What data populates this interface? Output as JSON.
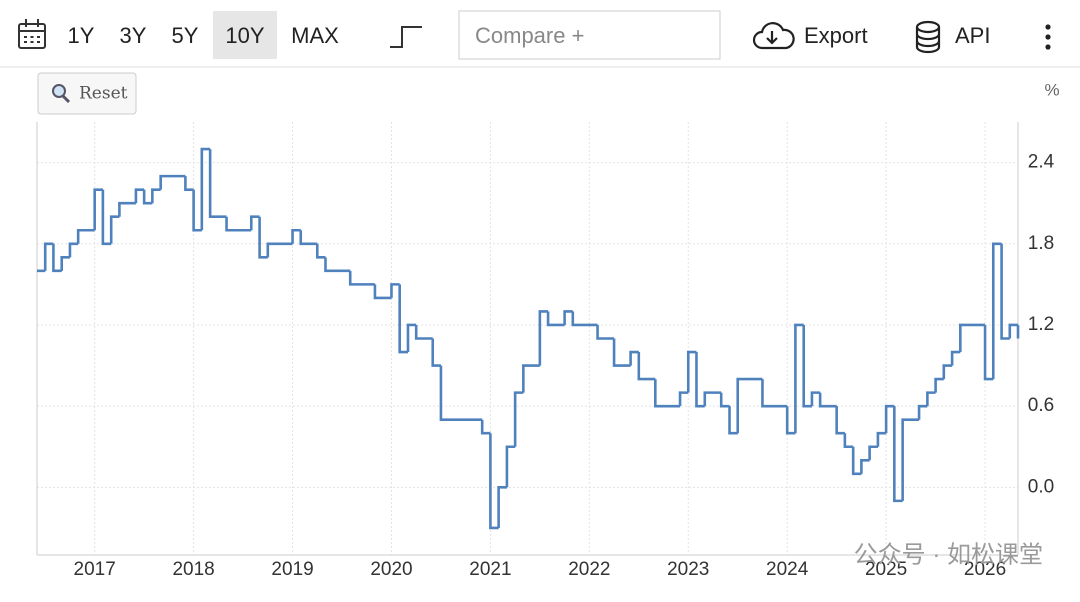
{
  "toolbar": {
    "ranges": [
      "1Y",
      "3Y",
      "5Y",
      "10Y",
      "MAX"
    ],
    "selected_range": 3,
    "compare": "Compare +",
    "export": "Export",
    "api": "API"
  },
  "reset": "Reset",
  "watermark": "公众号 · 如松课堂",
  "chart_data": {
    "type": "step",
    "unit": "%",
    "color": "#4f81bd",
    "grid": true,
    "xlim": [
      2016.417,
      2026.333
    ],
    "xticks": [
      2017,
      2018,
      2019,
      2020,
      2021,
      2022,
      2023,
      2024,
      2025,
      2026
    ],
    "ylim": [
      -0.5,
      2.7
    ],
    "yticks": [
      {
        "value": 0,
        "label": "0.0"
      },
      0.6,
      1.2,
      1.8,
      2.4
    ],
    "x": [
      2016.417,
      2016.5,
      2016.583,
      2016.667,
      2016.75,
      2016.833,
      2017,
      2017.083,
      2017.167,
      2017.25,
      2017.417,
      2017.5,
      2017.583,
      2017.667,
      2017.917,
      2018,
      2018.083,
      2018.167,
      2018.333,
      2018.583,
      2018.667,
      2018.75,
      2019,
      2019.083,
      2019.25,
      2019.333,
      2019.583,
      2019.833,
      2020,
      2020.083,
      2020.167,
      2020.25,
      2020.417,
      2020.5,
      2020.917,
      2021,
      2021.083,
      2021.167,
      2021.25,
      2021.333,
      2021.5,
      2021.583,
      2021.75,
      2021.833,
      2022.083,
      2022.25,
      2022.417,
      2022.5,
      2022.667,
      2022.917,
      2023,
      2023.083,
      2023.167,
      2023.333,
      2023.417,
      2023.5,
      2023.75,
      2024,
      2024.083,
      2024.167,
      2024.25,
      2024.333,
      2024.5,
      2024.583,
      2024.667,
      2024.75,
      2024.833,
      2024.917,
      2025,
      2025.083,
      2025.167,
      2025.333,
      2025.417,
      2025.5,
      2025.583,
      2025.667,
      2025.75,
      2026,
      2026.083,
      2026.167,
      2026.25,
      2026.333
    ],
    "values": [
      1.6,
      1.8,
      1.6,
      1.7,
      1.8,
      1.9,
      2.2,
      1.8,
      2.0,
      2.1,
      2.2,
      2.1,
      2.2,
      2.3,
      2.2,
      1.9,
      2.5,
      2.0,
      1.9,
      2.0,
      1.7,
      1.8,
      1.9,
      1.8,
      1.7,
      1.6,
      1.5,
      1.4,
      1.5,
      1.0,
      1.2,
      1.1,
      0.9,
      0.5,
      0.4,
      -0.3,
      0.0,
      0.3,
      0.7,
      0.9,
      1.3,
      1.2,
      1.3,
      1.2,
      1.1,
      0.9,
      1.0,
      0.8,
      0.6,
      0.7,
      1.0,
      0.6,
      0.7,
      0.6,
      0.4,
      0.8,
      0.6,
      0.4,
      1.2,
      0.6,
      0.7,
      0.6,
      0.4,
      0.3,
      0.1,
      0.2,
      0.3,
      0.4,
      0.6,
      -0.1,
      0.5,
      0.6,
      0.7,
      0.8,
      0.9,
      1.0,
      1.2,
      0.8,
      1.8,
      1.1,
      1.2,
      1.1
    ]
  }
}
